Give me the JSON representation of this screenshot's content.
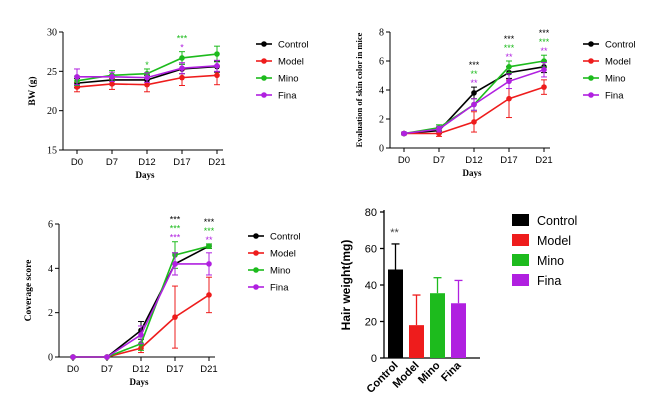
{
  "series_colors": {
    "Control": "#000000",
    "Model": "#ee1c1c",
    "Mino": "#1dbb1d",
    "Fina": "#b020e0"
  },
  "chart_data": [
    {
      "id": "bw",
      "type": "line",
      "title": "",
      "xlabel": "Days",
      "ylabel": "BW (g)",
      "categories": [
        "D0",
        "D7",
        "D12",
        "D17",
        "D21"
      ],
      "ylim": [
        15,
        30
      ],
      "yticks": [
        15,
        20,
        25,
        30
      ],
      "legend_position": "right",
      "series": [
        {
          "name": "Control",
          "values": [
            23.5,
            23.9,
            23.9,
            25.3,
            25.6
          ],
          "errors": [
            0.6,
            0.6,
            0.6,
            0.6,
            0.7
          ]
        },
        {
          "name": "Model",
          "values": [
            23.0,
            23.4,
            23.3,
            24.2,
            24.5
          ],
          "errors": [
            0.6,
            0.7,
            0.9,
            1.0,
            1.2
          ]
        },
        {
          "name": "Mino",
          "values": [
            23.8,
            24.5,
            24.7,
            26.7,
            27.2
          ],
          "errors": [
            0.6,
            0.6,
            0.6,
            0.8,
            1.0
          ]
        },
        {
          "name": "Fina",
          "values": [
            24.3,
            24.3,
            24.2,
            25.4,
            25.7
          ],
          "errors": [
            1.0,
            0.6,
            0.6,
            0.7,
            0.7
          ]
        }
      ],
      "annotations": [
        {
          "category": "D12",
          "lines": [
            {
              "text": "*",
              "series": "Mino"
            }
          ]
        },
        {
          "category": "D17",
          "lines": [
            {
              "text": "***",
              "series": "Mino"
            },
            {
              "text": "*",
              "series": "Fina"
            }
          ]
        }
      ]
    },
    {
      "id": "skin",
      "type": "line",
      "title": "",
      "xlabel": "Days",
      "ylabel": "Evaluation of skin color in mice",
      "categories": [
        "D0",
        "D7",
        "D12",
        "D17",
        "D21"
      ],
      "ylim": [
        0,
        8
      ],
      "yticks": [
        0,
        2,
        4,
        6,
        8
      ],
      "legend_position": "right",
      "series": [
        {
          "name": "Control",
          "values": [
            1.0,
            1.2,
            3.8,
            5.2,
            5.6
          ],
          "errors": [
            0.1,
            0.2,
            0.4,
            0.4,
            0.4
          ]
        },
        {
          "name": "Model",
          "values": [
            1.0,
            1.0,
            1.8,
            3.4,
            4.2
          ],
          "errors": [
            0.1,
            0.2,
            0.7,
            1.3,
            0.5
          ]
        },
        {
          "name": "Mino",
          "values": [
            1.0,
            1.4,
            3.0,
            5.6,
            6.0
          ],
          "errors": [
            0.1,
            0.2,
            0.4,
            0.4,
            0.4
          ]
        },
        {
          "name": "Fina",
          "values": [
            1.0,
            1.3,
            3.0,
            4.6,
            5.4
          ],
          "errors": [
            0.1,
            0.2,
            0.4,
            0.5,
            0.5
          ]
        }
      ],
      "annotations": [
        {
          "category": "D12",
          "lines": [
            {
              "text": "***",
              "series": "Control"
            },
            {
              "text": "**",
              "series": "Mino"
            },
            {
              "text": "**",
              "series": "Fina"
            }
          ]
        },
        {
          "category": "D17",
          "lines": [
            {
              "text": "***",
              "series": "Control"
            },
            {
              "text": "***",
              "series": "Mino"
            },
            {
              "text": "**",
              "series": "Fina"
            }
          ]
        },
        {
          "category": "D21",
          "lines": [
            {
              "text": "***",
              "series": "Control"
            },
            {
              "text": "***",
              "series": "Mino"
            },
            {
              "text": "**",
              "series": "Fina"
            }
          ]
        }
      ]
    },
    {
      "id": "coverage",
      "type": "line",
      "title": "",
      "xlabel": "Days",
      "ylabel": "Coverage score",
      "categories": [
        "D0",
        "D7",
        "D12",
        "D17",
        "D21"
      ],
      "ylim": [
        0,
        6
      ],
      "yticks": [
        0,
        2,
        4,
        6
      ],
      "legend_position": "right",
      "series": [
        {
          "name": "Control",
          "values": [
            0,
            0,
            1.2,
            4.2,
            5.0
          ],
          "errors": [
            0,
            0,
            0.4,
            0.5,
            0.1
          ]
        },
        {
          "name": "Model",
          "values": [
            0,
            0,
            0.4,
            1.8,
            2.8
          ],
          "errors": [
            0,
            0,
            0.2,
            1.4,
            0.8
          ]
        },
        {
          "name": "Mino",
          "values": [
            0,
            0,
            0.6,
            4.6,
            5.0
          ],
          "errors": [
            0,
            0,
            0.3,
            0.6,
            0.1
          ]
        },
        {
          "name": "Fina",
          "values": [
            0,
            0,
            1.0,
            4.2,
            4.2
          ],
          "errors": [
            0,
            0,
            0.4,
            0.5,
            0.5
          ]
        }
      ],
      "annotations": [
        {
          "category": "D17",
          "lines": [
            {
              "text": "***",
              "series": "Control"
            },
            {
              "text": "***",
              "series": "Mino"
            },
            {
              "text": "***",
              "series": "Fina"
            }
          ]
        },
        {
          "category": "D21",
          "lines": [
            {
              "text": "***",
              "series": "Control"
            },
            {
              "text": "***",
              "series": "Mino"
            },
            {
              "text": "**",
              "series": "Fina"
            }
          ]
        }
      ]
    },
    {
      "id": "hair",
      "type": "bar",
      "title": "",
      "xlabel": "",
      "ylabel": "Hair weight(mg)",
      "categories": [
        "Control",
        "Model",
        "Mino",
        "Fina"
      ],
      "values": [
        48.5,
        18.0,
        35.5,
        30.0
      ],
      "errors": [
        14.0,
        16.5,
        8.5,
        12.5
      ],
      "ylim": [
        0,
        80
      ],
      "yticks": [
        0,
        20,
        40,
        60,
        80
      ],
      "legend_position": "right",
      "annotations": [
        {
          "category": "Control",
          "text": "**"
        }
      ]
    }
  ]
}
